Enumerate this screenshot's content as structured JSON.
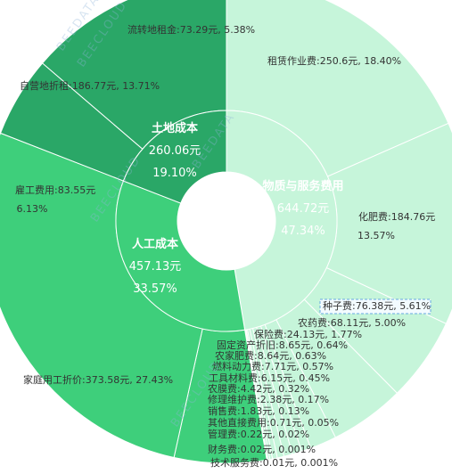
{
  "chart_data": {
    "type": "pie",
    "subtype": "sunburst",
    "center_hole": true,
    "categories": [
      {
        "name": "土地成本",
        "value": "260.06元",
        "percent": "19.10%",
        "color": "#2aa767",
        "children": [
          {
            "label": "流转地租金:73.29元, 5.38%",
            "value": 73.29
          },
          {
            "label": "自营地折租:186.77元, 13.71%",
            "value": 186.77
          }
        ]
      },
      {
        "name": "人工成本",
        "value": "457.13元",
        "percent": "33.57%",
        "color": "#3ecf7b",
        "children": [
          {
            "label": "雇工费用:83.55元",
            "label2": "6.13%",
            "value": 83.55
          },
          {
            "label": "家庭用工折价:373.58元, 27.43%",
            "value": 373.58
          }
        ]
      },
      {
        "name": "物质与服务费用",
        "value": "644.72元",
        "percent": "47.34%",
        "color": "#c6f5da",
        "children": [
          {
            "label": "租赁作业费:250.6元, 18.40%",
            "value": 250.6
          },
          {
            "label": "化肥费:184.76元",
            "label2": "13.57%",
            "value": 184.76
          },
          {
            "label": "种子费:76.38元, 5.61%",
            "value": 76.38,
            "highlight": true
          },
          {
            "label": "农药费:68.11元, 5.00%",
            "value": 68.11
          },
          {
            "label": "保险费:24.13元, 1.77%",
            "value": 24.13
          },
          {
            "label": "固定资产折旧:8.65元, 0.64%",
            "value": 8.65
          },
          {
            "label": "农家肥费:8.64元, 0.63%",
            "value": 8.64
          },
          {
            "label": "燃料动力费:7.71元, 0.57%",
            "value": 7.71
          },
          {
            "label": "工具材料费:6.15元, 0.45%",
            "value": 6.15
          },
          {
            "label": "农膜费:4.42元, 0.32%",
            "value": 4.42
          },
          {
            "label": "修理维护费:2.38元, 0.17%",
            "value": 2.38
          },
          {
            "label": "销售费:1.83元, 0.13%",
            "value": 1.83
          },
          {
            "label": "其他直接费用:0.71元, 0.05%",
            "value": 0.71
          },
          {
            "label": "管理费:0.22元, 0.02%",
            "value": 0.22
          },
          {
            "label": "财务费:0.02元, 0.001%",
            "value": 0.02
          },
          {
            "label": "技术服务费:0.01元, 0.001%",
            "value": 0.01
          }
        ]
      }
    ],
    "watermarks": [
      "BEEDATA",
      "BEECLOUD",
      "农小蜂数据云"
    ],
    "colors": {
      "outer_land": "#2aa767",
      "outer_labor": "#3ecf7b",
      "outer_material": "#c6f5da",
      "inner_material": "#c6f5da",
      "text_dark": "#333333",
      "highlight_border": "#67a8e0"
    }
  }
}
